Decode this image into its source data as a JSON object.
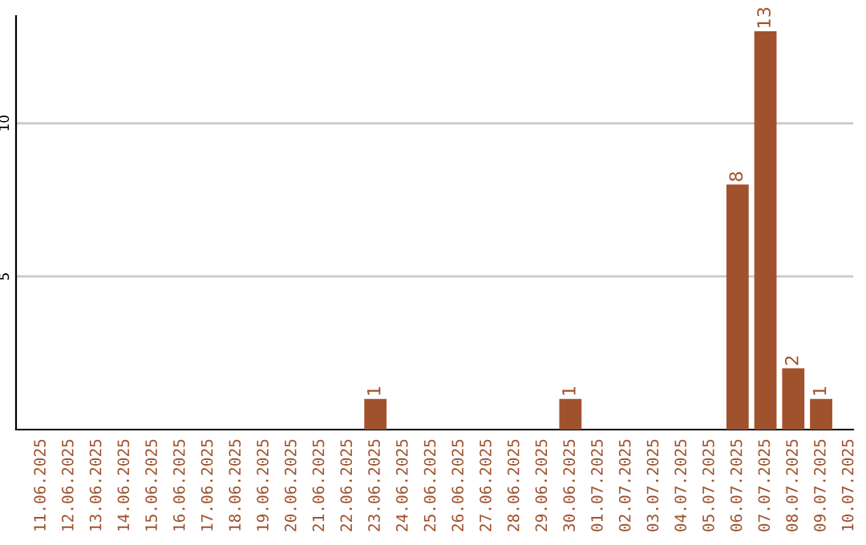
{
  "chart_data": {
    "type": "bar",
    "categories": [
      "11.06.2025",
      "12.06.2025",
      "13.06.2025",
      "14.06.2025",
      "15.06.2025",
      "16.06.2025",
      "17.06.2025",
      "18.06.2025",
      "19.06.2025",
      "20.06.2025",
      "21.06.2025",
      "22.06.2025",
      "23.06.2025",
      "24.06.2025",
      "25.06.2025",
      "26.06.2025",
      "27.06.2025",
      "28.06.2025",
      "29.06.2025",
      "30.06.2025",
      "01.07.2025",
      "02.07.2025",
      "03.07.2025",
      "04.07.2025",
      "05.07.2025",
      "06.07.2025",
      "07.07.2025",
      "08.07.2025",
      "09.07.2025",
      "10.07.2025"
    ],
    "values": [
      0,
      0,
      0,
      0,
      0,
      0,
      0,
      0,
      0,
      0,
      0,
      0,
      1,
      0,
      0,
      0,
      0,
      0,
      0,
      1,
      0,
      0,
      0,
      0,
      0,
      8,
      13,
      2,
      1,
      0
    ],
    "value_labels": [
      null,
      null,
      null,
      null,
      null,
      null,
      null,
      null,
      null,
      null,
      null,
      null,
      "1",
      null,
      null,
      null,
      null,
      null,
      null,
      "1",
      null,
      null,
      null,
      null,
      null,
      "8",
      "13",
      "2",
      "1",
      null
    ],
    "color": "#a0522d",
    "ylim": [
      0,
      13.5
    ],
    "yticks": [
      5,
      10
    ],
    "grid": "y",
    "legend": false
  }
}
